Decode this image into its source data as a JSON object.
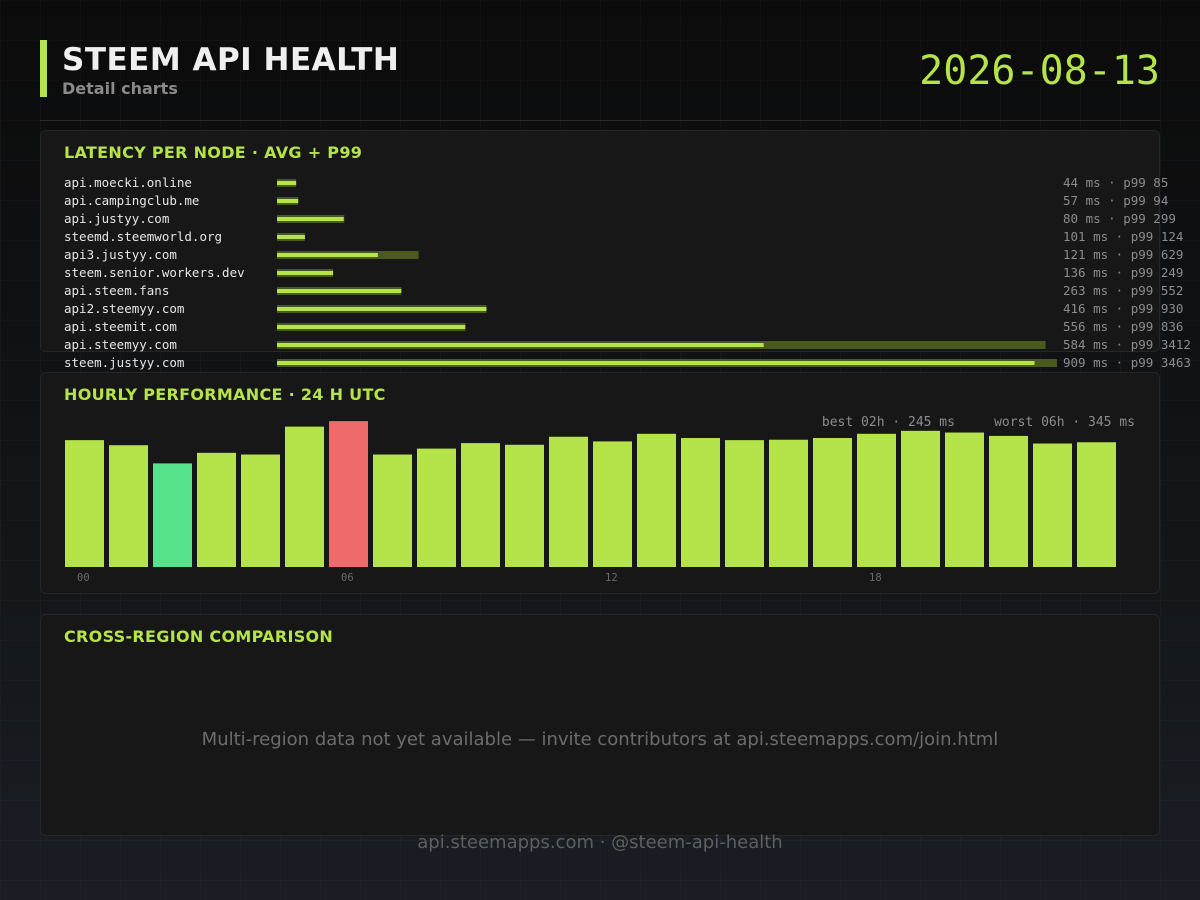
{
  "header": {
    "title": "STEEM API HEALTH",
    "subtitle": "Detail charts",
    "date": "2026-08-13"
  },
  "colors": {
    "accent": "#b5e34a",
    "accent_dim": "#4a5a1e",
    "best": "#57e38c",
    "worst": "#ef6a6a"
  },
  "latency_panel": {
    "title": "LATENCY PER NODE  ·  AVG + P99"
  },
  "hourly_panel": {
    "title": "HOURLY PERFORMANCE  ·  24 H UTC",
    "best_label": "best 02h · 245 ms",
    "worst_label": "worst 06h · 345 ms"
  },
  "region_panel": {
    "title": "CROSS-REGION COMPARISON",
    "message": "Multi-region data not yet available — invite contributors at api.steemapps.com/join.html"
  },
  "footer": {
    "text": "api.steemapps.com  ·  @steem-api-health"
  },
  "chart_data": [
    {
      "type": "bar",
      "orientation": "horizontal",
      "title": "LATENCY PER NODE  ·  AVG + P99",
      "categories": [
        "api.moecki.online",
        "api.campingclub.me",
        "api.justyy.com",
        "steemd.steemworld.org",
        "api3.justyy.com",
        "steem.senior.workers.dev",
        "api.steem.fans",
        "api2.steemyy.com",
        "api.steemit.com",
        "api.steemyy.com",
        "steem.justyy.com"
      ],
      "series": [
        {
          "name": "avg",
          "values": [
            44,
            57,
            80,
            101,
            121,
            136,
            263,
            416,
            556,
            584,
            909
          ]
        },
        {
          "name": "p99",
          "values": [
            85,
            94,
            299,
            124,
            629,
            249,
            552,
            930,
            836,
            3412,
            3463
          ]
        }
      ],
      "unit": "ms",
      "value_labels": [
        "44 ms  · p99 85",
        "57 ms  · p99 94",
        "80 ms  · p99 299",
        "101 ms  · p99 124",
        "121 ms  · p99 629",
        "136 ms  · p99 249",
        "263 ms  · p99 552",
        "416 ms  · p99 930",
        "556 ms  · p99 836",
        "584 ms  · p99 3412",
        "909 ms  · p99 3463"
      ]
    },
    {
      "type": "bar",
      "title": "HOURLY PERFORMANCE  ·  24 H UTC",
      "categories": [
        "00",
        "01",
        "02",
        "03",
        "04",
        "05",
        "06",
        "07",
        "08",
        "09",
        "10",
        "11",
        "12",
        "13",
        "14",
        "15",
        "16",
        "17",
        "18",
        "19",
        "20",
        "21",
        "22",
        "23"
      ],
      "values": [
        300,
        288,
        245,
        270,
        266,
        332,
        345,
        266,
        280,
        293,
        289,
        308,
        297,
        315,
        305,
        300,
        301,
        305,
        315,
        322,
        318,
        310,
        292,
        295
      ],
      "unit": "ms",
      "ylim": [
        0,
        350
      ],
      "tick_labels": [
        "00",
        "06",
        "12",
        "18"
      ],
      "best_index": 2,
      "worst_index": 6
    }
  ]
}
